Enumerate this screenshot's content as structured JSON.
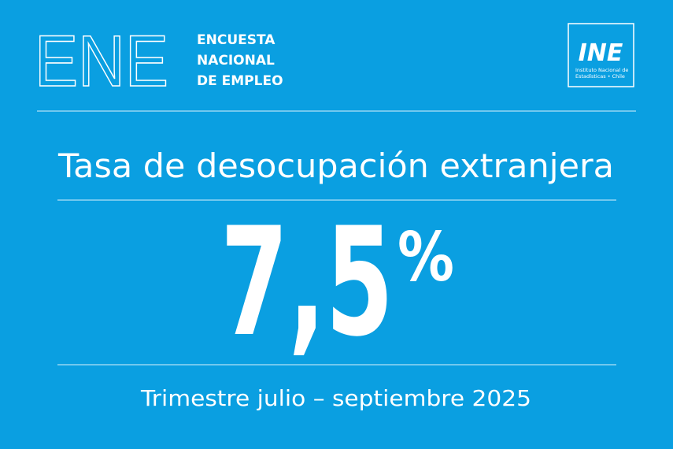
{
  "header": {
    "acronym": "ENE",
    "name_lines": [
      "ENCUESTA",
      "NACIONAL",
      "DE EMPLEO"
    ],
    "logo": {
      "mark": "INE",
      "caption_lines": [
        "Instituto Nacional de",
        "Estadísticas • Chile"
      ]
    }
  },
  "title": "Tasa de desocupación extranjera",
  "figure": {
    "value": "7,5",
    "unit": "%"
  },
  "period": "Trimestre julio – septiembre 2025"
}
